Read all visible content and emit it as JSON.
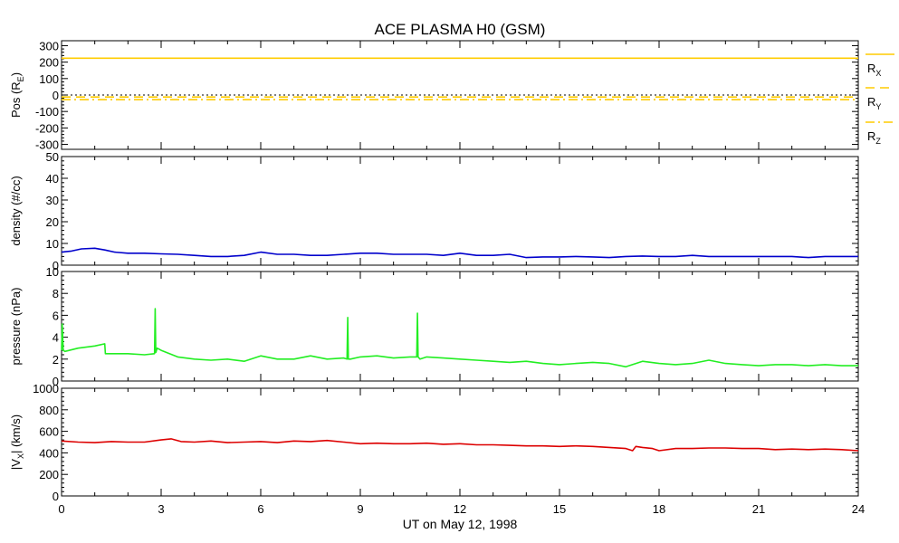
{
  "chart_data": {
    "title": "ACE PLASMA H0 (GSM)",
    "xlabel": "UT on May 12, 1998",
    "xlim": [
      0,
      24
    ],
    "xticks": [
      "0",
      "3",
      "6",
      "9",
      "12",
      "15",
      "18",
      "21",
      "24"
    ],
    "panels": [
      {
        "id": "pos",
        "type": "line",
        "ylabel": "Pos (RE)",
        "ylabel_main": "Pos (R",
        "ylabel_sub": "E",
        "ylabel_end": ")",
        "ylim": [
          -330,
          330
        ],
        "yticks": [
          "300",
          "200",
          "100",
          "0",
          "-100",
          "-200",
          "-300"
        ],
        "reference_line": 0,
        "series": [
          {
            "name": "RX",
            "name_main": "R",
            "name_sub": "X",
            "color": "#ffcc00",
            "style": "solid",
            "x": [
              0,
              24
            ],
            "values": [
              224,
              224
            ]
          },
          {
            "name": "RY",
            "name_main": "R",
            "name_sub": "Y",
            "color": "#ffcc00",
            "style": "dashed",
            "x": [
              0,
              24
            ],
            "values": [
              -12,
              -12
            ]
          },
          {
            "name": "RZ",
            "name_main": "R",
            "name_sub": "Z",
            "color": "#ffcc00",
            "style": "dashdot",
            "x": [
              0,
              24
            ],
            "values": [
              -28,
              -28
            ]
          }
        ]
      },
      {
        "id": "density",
        "type": "line",
        "ylabel": "density (#/cc)",
        "ylim": [
          0,
          50
        ],
        "yticks": [
          "50",
          "40",
          "30",
          "20",
          "10",
          "0"
        ],
        "series": [
          {
            "name": "density",
            "color": "#0000cc",
            "x": [
              0,
              0.3,
              0.6,
              1.0,
              1.3,
              1.6,
              2.0,
              2.5,
              3.0,
              3.5,
              4.0,
              4.5,
              5.0,
              5.5,
              6.0,
              6.5,
              7.0,
              7.5,
              8.0,
              8.5,
              9.0,
              9.5,
              10.0,
              10.5,
              11.0,
              11.5,
              12.0,
              12.5,
              13.0,
              13.5,
              14.0,
              14.5,
              15.0,
              15.5,
              16.0,
              16.5,
              17.0,
              17.5,
              18.0,
              18.5,
              19.0,
              19.5,
              20.0,
              20.5,
              21.0,
              21.5,
              22.0,
              22.5,
              23.0,
              23.5,
              24.0
            ],
            "values": [
              6.0,
              6.5,
              7.5,
              7.8,
              7.0,
              6.0,
              5.5,
              5.5,
              5.2,
              5.0,
              4.5,
              4.0,
              4.0,
              4.5,
              6.0,
              5.0,
              5.0,
              4.5,
              4.5,
              5.0,
              5.5,
              5.5,
              5.0,
              5.0,
              5.0,
              4.5,
              5.5,
              4.5,
              4.5,
              5.0,
              3.5,
              3.8,
              3.8,
              4.0,
              3.8,
              3.5,
              4.0,
              4.2,
              4.0,
              4.0,
              4.5,
              4.0,
              4.0,
              4.0,
              4.0,
              4.0,
              4.0,
              3.5,
              4.0,
              4.0,
              4.0
            ]
          }
        ]
      },
      {
        "id": "pressure",
        "type": "line",
        "ylabel": "pressure (nPa)",
        "ylim": [
          0,
          10
        ],
        "yticks": [
          "10",
          "8",
          "6",
          "4",
          "2",
          "0"
        ],
        "series": [
          {
            "name": "pressure",
            "color": "#22ee22",
            "x": [
              0,
              0.02,
              0.05,
              0.1,
              0.5,
              1.0,
              1.3,
              1.32,
              1.6,
              2.0,
              2.5,
              2.8,
              2.82,
              2.84,
              2.88,
              3.0,
              3.5,
              4.0,
              4.5,
              5.0,
              5.5,
              6.0,
              6.5,
              7.0,
              7.5,
              8.0,
              8.5,
              8.6,
              8.62,
              8.64,
              8.7,
              9.0,
              9.5,
              10.0,
              10.5,
              10.7,
              10.72,
              10.74,
              10.8,
              11.0,
              11.5,
              12.0,
              12.5,
              13.0,
              13.5,
              14.0,
              14.5,
              15.0,
              15.5,
              16.0,
              16.5,
              17.0,
              17.5,
              18.0,
              18.5,
              19.0,
              19.5,
              20.0,
              20.5,
              21.0,
              21.5,
              22.0,
              22.5,
              23.0,
              23.5,
              24.0
            ],
            "values": [
              2.8,
              5.2,
              2.8,
              2.7,
              3.0,
              3.2,
              3.4,
              2.5,
              2.5,
              2.5,
              2.4,
              2.5,
              6.6,
              2.6,
              3.0,
              2.8,
              2.2,
              2.0,
              1.9,
              2.0,
              1.8,
              2.3,
              2.0,
              2.0,
              2.3,
              2.0,
              2.1,
              2.0,
              5.8,
              2.0,
              2.0,
              2.2,
              2.3,
              2.1,
              2.2,
              2.2,
              6.2,
              2.2,
              2.0,
              2.2,
              2.1,
              2.0,
              1.9,
              1.8,
              1.7,
              1.8,
              1.6,
              1.5,
              1.6,
              1.7,
              1.6,
              1.3,
              1.8,
              1.6,
              1.5,
              1.6,
              1.9,
              1.6,
              1.5,
              1.4,
              1.5,
              1.5,
              1.4,
              1.5,
              1.4,
              1.4
            ]
          }
        ]
      },
      {
        "id": "vx",
        "type": "line",
        "ylabel": "|VX| (km/s)",
        "ylabel_main": "|V",
        "ylabel_sub": "X",
        "ylabel_end": "| (km/s)",
        "ylim": [
          0,
          1000
        ],
        "yticks": [
          "1000",
          "800",
          "600",
          "400",
          "200",
          "0"
        ],
        "series": [
          {
            "name": "|VX|",
            "color": "#dd0000",
            "x": [
              0,
              0.5,
              1.0,
              1.5,
              2.0,
              2.5,
              3.0,
              3.3,
              3.6,
              4.0,
              4.5,
              5.0,
              5.5,
              6.0,
              6.5,
              7.0,
              7.5,
              8.0,
              8.5,
              9.0,
              9.5,
              10.0,
              10.5,
              11.0,
              11.5,
              12.0,
              12.5,
              13.0,
              13.5,
              14.0,
              14.5,
              15.0,
              15.5,
              16.0,
              16.5,
              17.0,
              17.2,
              17.3,
              17.5,
              17.8,
              18.0,
              18.5,
              19.0,
              19.5,
              20.0,
              20.5,
              21.0,
              21.5,
              22.0,
              22.5,
              23.0,
              23.5,
              24.0
            ],
            "values": [
              510,
              500,
              495,
              505,
              500,
              500,
              520,
              530,
              505,
              500,
              510,
              495,
              500,
              505,
              495,
              510,
              505,
              515,
              500,
              485,
              490,
              485,
              485,
              490,
              480,
              485,
              475,
              475,
              470,
              465,
              465,
              460,
              465,
              460,
              450,
              440,
              420,
              460,
              450,
              440,
              420,
              440,
              440,
              445,
              445,
              440,
              440,
              430,
              435,
              430,
              435,
              430,
              420
            ]
          }
        ]
      }
    ]
  }
}
